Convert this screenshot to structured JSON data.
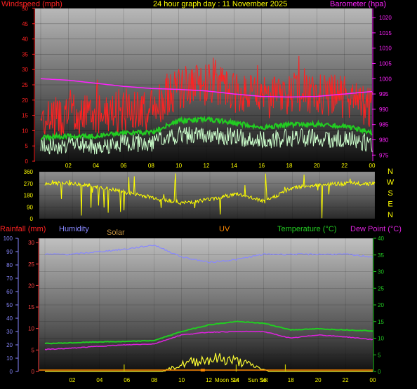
{
  "title": "24 hour graph day : 11 November 2025",
  "colors": {
    "wind_speed": "#ff1111",
    "wind_gust": "#ff2222",
    "wind_avg": "#22cc22",
    "wind_light": "#ccffcc",
    "barometer": "#ff22ff",
    "direction": "#ffff00",
    "humidity": "#8888ff",
    "temperature": "#22cc22",
    "dewpoint": "#dd22dd",
    "solar": "#ffff33",
    "uv": "#ff8800",
    "rain": "#ff4444"
  },
  "x_hours": [
    "02",
    "04",
    "06",
    "08",
    "10",
    "12",
    "14",
    "16",
    "18",
    "20",
    "22",
    "00"
  ],
  "top_panel": {
    "left_label": "Windspeed (mph)",
    "right_label": "Barometer (hpa)",
    "left_ticks": [
      "0",
      "5",
      "10",
      "15",
      "20",
      "25",
      "30",
      "35",
      "40",
      "45",
      "50"
    ],
    "right_ticks": [
      "975",
      "980",
      "985",
      "990",
      "995",
      "1000",
      "1005",
      "1010",
      "1015",
      "1020"
    ]
  },
  "dir_panel": {
    "left_ticks": [
      "0",
      "90",
      "180",
      "270",
      "360"
    ],
    "compass": [
      "N",
      "W",
      "S",
      "E",
      "N"
    ]
  },
  "bottom_panel": {
    "rain_label": "Rainfall (mm)",
    "humidity_label": "Humidity",
    "solar_label": "Solar",
    "uv_label": "UV",
    "temp_label": "Temperature (°C)",
    "dew_label": "Dew Point (°C)",
    "hum_ticks": [
      "0",
      "10",
      "20",
      "30",
      "40",
      "50",
      "60",
      "70",
      "80",
      "90",
      "100"
    ],
    "rain_ticks": [
      "0",
      "5",
      "10",
      "15",
      "20",
      "25",
      "30"
    ],
    "temp_ticks": [
      "0",
      "5",
      "10",
      "15",
      "20",
      "25",
      "30",
      "35",
      "40"
    ],
    "moon_set": "Moon Set",
    "sun_set": "Sun Set"
  },
  "chart_data": [
    {
      "type": "line",
      "title": "24 hour graph day : 11 November 2025",
      "x": [
        "00",
        "02",
        "04",
        "06",
        "08",
        "10",
        "12",
        "14",
        "16",
        "18",
        "20",
        "22",
        "00"
      ],
      "series": [
        {
          "name": "Windspeed (mph)",
          "values": [
            14,
            15,
            15,
            17,
            17,
            24,
            25,
            23,
            20,
            22,
            22,
            21,
            17
          ]
        },
        {
          "name": "Barometer (hpa)",
          "values": [
            1000,
            999.5,
            998.5,
            997.5,
            996.8,
            996.5,
            996,
            995,
            994.2,
            994,
            994.2,
            995,
            995.8
          ]
        }
      ],
      "ylim": [
        0,
        50
      ],
      "y2lim": [
        973,
        1023
      ]
    },
    {
      "type": "line",
      "x": [
        "00",
        "02",
        "04",
        "06",
        "08",
        "10",
        "12",
        "14",
        "16",
        "18",
        "20",
        "22",
        "00"
      ],
      "series": [
        {
          "name": "Wind direction",
          "values": [
            270,
            270,
            240,
            200,
            160,
            120,
            150,
            190,
            130,
            240,
            260,
            270,
            270
          ]
        }
      ],
      "ylim": [
        0,
        360
      ]
    },
    {
      "type": "line",
      "x": [
        "00",
        "02",
        "04",
        "06",
        "08",
        "10",
        "12",
        "14",
        "16",
        "18",
        "20",
        "22",
        "00"
      ],
      "series": [
        {
          "name": "Humidity",
          "values": [
            88,
            88,
            90,
            92,
            95,
            86,
            82,
            84,
            88,
            88,
            88,
            88,
            86
          ]
        },
        {
          "name": "Temperature (°C)",
          "values": [
            8.4,
            8.6,
            8.9,
            9,
            9.3,
            12,
            14,
            15,
            14.5,
            12.5,
            12.8,
            12.5,
            12.2
          ]
        },
        {
          "name": "Dew Point (°C)",
          "values": [
            6.6,
            7,
            7.6,
            8,
            8.3,
            11,
            11.8,
            12,
            12,
            10,
            11,
            10.4,
            9.6
          ]
        },
        {
          "name": "Solar",
          "values": [
            0,
            0,
            0,
            0,
            0,
            3,
            5,
            3,
            1,
            0,
            0,
            0,
            0
          ]
        }
      ],
      "ylim": [
        0,
        100
      ],
      "y2lim": [
        0,
        40
      ]
    }
  ]
}
